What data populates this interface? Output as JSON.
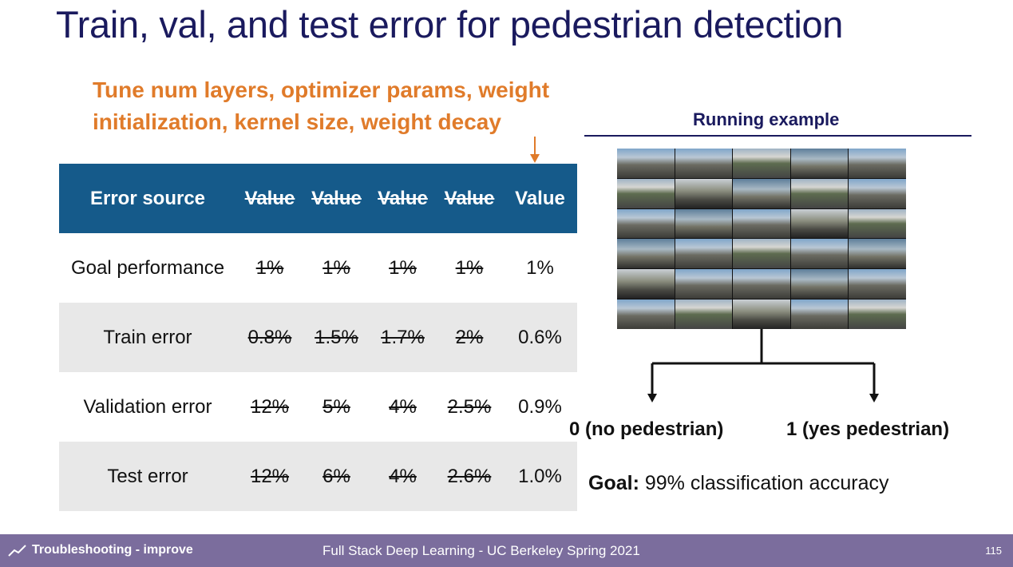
{
  "title": "Train, val, and test error for pedestrian detection",
  "tune_note": {
    "line1": "Tune num layers, optimizer params, weight",
    "line2": "initialization, kernel size, weight decay"
  },
  "table": {
    "headers": [
      "Error source",
      "Value",
      "Value",
      "Value",
      "Value",
      "Value"
    ],
    "rows": [
      {
        "label": "Goal performance",
        "values": [
          "1%",
          "1%",
          "1%",
          "1%",
          "1%"
        ]
      },
      {
        "label": "Train error",
        "values": [
          "0.8%",
          "1.5%",
          "1.7%",
          "2%",
          "0.6%"
        ]
      },
      {
        "label": "Validation error",
        "values": [
          "12%",
          "5%",
          "4%",
          "2.5%",
          "0.9%"
        ]
      },
      {
        "label": "Test error",
        "values": [
          "12%",
          "6%",
          "4%",
          "2.6%",
          "1.0%"
        ]
      }
    ]
  },
  "running_example": {
    "label": "Running example",
    "output0": "0 (no pedestrian)",
    "output1": "1 (yes pedestrian)",
    "goal_label": "Goal:",
    "goal_text": " 99% classification accuracy"
  },
  "footer": {
    "section": "Troubleshooting - improve",
    "course": "Full Stack Deep Learning - UC Berkeley Spring 2021",
    "page": "115",
    "icon": "trend-line-icon"
  },
  "colors": {
    "title": "#1a1a5e",
    "accent_orange": "#e07b2a",
    "header_blue": "#155a8a",
    "green": "#4aa37e",
    "footer_purple": "#7b6d9d"
  }
}
